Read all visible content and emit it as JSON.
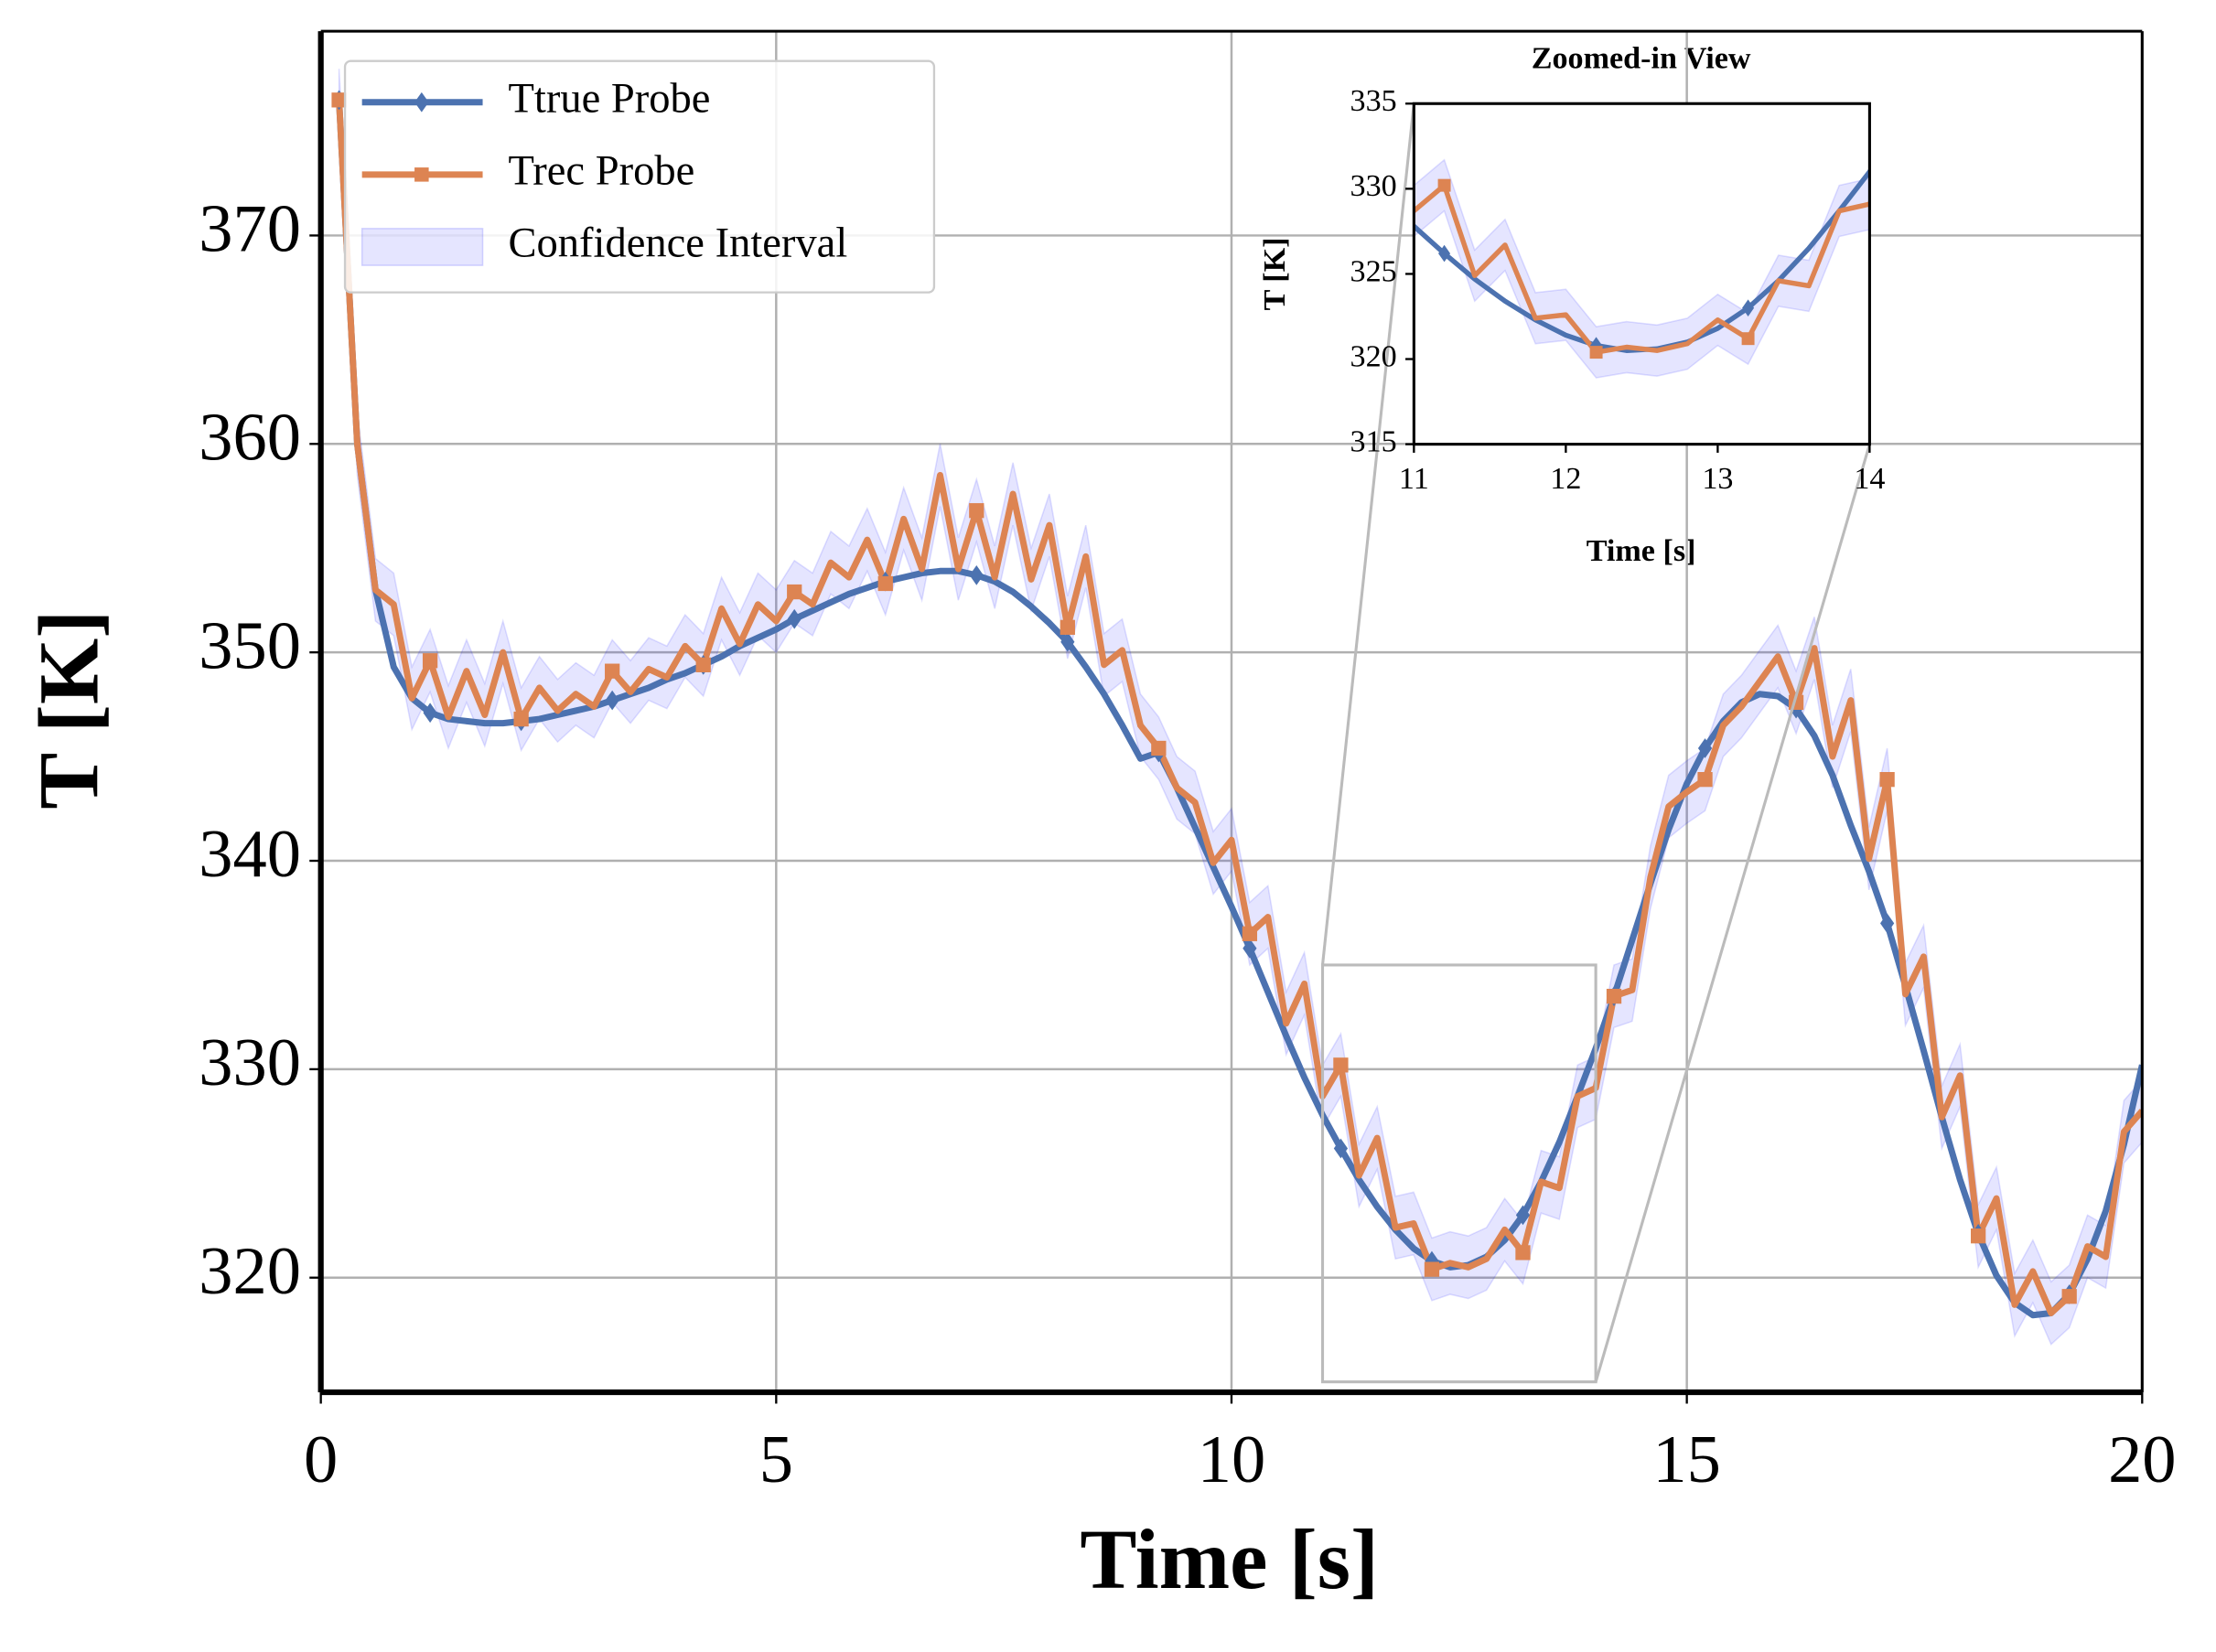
{
  "chart_data": {
    "type": "line",
    "xlabel": "Time [s]",
    "ylabel": "T [K]",
    "x": [
      0.2,
      0.4,
      0.6,
      0.8,
      1.0,
      1.2,
      1.4,
      1.6,
      1.8,
      2.0,
      2.2,
      2.4,
      2.6,
      2.8,
      3.0,
      3.2,
      3.4,
      3.6,
      3.8,
      4.0,
      4.2,
      4.4,
      4.6,
      4.8,
      5.0,
      5.2,
      5.4,
      5.6,
      5.8,
      6.0,
      6.2,
      6.4,
      6.6,
      6.8,
      7.0,
      7.2,
      7.4,
      7.6,
      7.8,
      8.0,
      8.2,
      8.4,
      8.6,
      8.8,
      9.0,
      9.2,
      9.4,
      9.6,
      9.8,
      10.0,
      10.2,
      10.4,
      10.6,
      10.8,
      11.0,
      11.2,
      11.4,
      11.6,
      11.8,
      12.0,
      12.2,
      12.4,
      12.6,
      12.8,
      13.0,
      13.2,
      13.4,
      13.6,
      13.8,
      14.0,
      14.2,
      14.4,
      14.6,
      14.8,
      15.0,
      15.2,
      15.4,
      15.6,
      15.8,
      16.0,
      16.2,
      16.4,
      16.6,
      16.8,
      17.0,
      17.2,
      17.4,
      17.6,
      17.8,
      18.0,
      18.2,
      18.4,
      18.6,
      18.8,
      19.0,
      19.2,
      19.4,
      19.6,
      19.8,
      20.0
    ],
    "series": [
      {
        "name": "Ttrue Probe",
        "color": "#4c72b0",
        "marker": "diamond",
        "values": [
          376.5,
          360,
          353,
          349.3,
          347.8,
          347.1,
          346.8,
          346.7,
          346.6,
          346.6,
          346.7,
          346.8,
          347.0,
          347.2,
          347.4,
          347.7,
          348.0,
          348.3,
          348.7,
          349.0,
          349.4,
          349.8,
          350.3,
          350.7,
          351.1,
          351.6,
          352.0,
          352.4,
          352.8,
          353.1,
          353.4,
          353.6,
          353.8,
          353.9,
          353.9,
          353.7,
          353.4,
          352.9,
          352.2,
          351.4,
          350.5,
          349.3,
          348.0,
          346.5,
          344.9,
          345.2,
          343.5,
          341.6,
          339.7,
          337.8,
          335.8,
          333.7,
          331.6,
          329.6,
          327.8,
          326.2,
          324.7,
          323.4,
          322.3,
          321.4,
          320.8,
          320.5,
          320.6,
          321.0,
          321.8,
          323.0,
          324.6,
          326.5,
          328.7,
          331.0,
          333.5,
          336.2,
          338.9,
          341.5,
          343.7,
          345.4,
          346.7,
          347.6,
          348.0,
          347.9,
          347.3,
          346.0,
          344.1,
          341.7,
          339.5,
          337.0,
          334.0,
          330.9,
          327.7,
          324.7,
          322.1,
          320.1,
          318.8,
          318.2,
          318.3,
          319.2,
          320.9,
          323.2,
          326.4,
          330.2
        ]
      },
      {
        "name": "Trec Probe",
        "color": "#dd8452",
        "marker": "square",
        "values": [
          376.5,
          360,
          353,
          352.3,
          347.8,
          349.6,
          346.9,
          349.1,
          347.0,
          350.0,
          346.8,
          348.3,
          347.2,
          348.0,
          347.4,
          349.1,
          348.1,
          349.2,
          348.8,
          350.3,
          349.4,
          352.1,
          350.4,
          352.3,
          351.5,
          352.9,
          352.3,
          354.3,
          353.6,
          355.4,
          353.3,
          356.4,
          354.0,
          358.5,
          354.0,
          356.8,
          353.6,
          357.6,
          353.5,
          356.1,
          351.2,
          354.6,
          349.4,
          350.1,
          346.5,
          345.4,
          343.5,
          342.8,
          339.9,
          341.0,
          336.5,
          337.3,
          332.2,
          334.1,
          328.7,
          330.2,
          324.9,
          326.7,
          322.4,
          322.6,
          320.4,
          320.7,
          320.5,
          320.9,
          322.3,
          321.2,
          324.6,
          324.3,
          328.7,
          329.1,
          333.5,
          333.8,
          339.2,
          342.6,
          343.3,
          343.9,
          346.5,
          347.4,
          348.6,
          349.8,
          347.6,
          350.2,
          345.0,
          347.7,
          340.1,
          343.9,
          333.6,
          335.4,
          327.7,
          329.7,
          322.0,
          323.8,
          318.7,
          320.3,
          318.3,
          319.1,
          321.5,
          321.0,
          327.0,
          328.0
        ]
      }
    ],
    "band": {
      "name": "Confidence Interval",
      "color": "#0000ff",
      "lower": [
        375.0,
        358.5,
        351.5,
        350.8,
        346.3,
        348.1,
        345.4,
        347.6,
        345.5,
        348.5,
        345.3,
        346.8,
        345.7,
        346.5,
        345.9,
        347.6,
        346.6,
        347.7,
        347.3,
        348.8,
        347.9,
        350.6,
        348.9,
        350.8,
        350.0,
        351.4,
        350.8,
        352.8,
        352.1,
        353.9,
        351.8,
        354.9,
        352.5,
        357.0,
        352.5,
        355.3,
        352.1,
        356.1,
        352.0,
        354.6,
        349.7,
        353.1,
        347.9,
        348.6,
        345.0,
        343.9,
        342.0,
        341.3,
        338.4,
        339.5,
        335.0,
        335.8,
        330.7,
        332.6,
        327.2,
        328.7,
        323.4,
        325.2,
        320.9,
        321.1,
        318.9,
        319.2,
        319.0,
        319.4,
        320.8,
        319.7,
        323.1,
        322.8,
        327.2,
        327.6,
        332.0,
        332.3,
        337.7,
        341.1,
        341.8,
        342.4,
        345.0,
        345.9,
        347.1,
        348.3,
        346.1,
        348.7,
        343.5,
        346.2,
        338.6,
        342.4,
        332.1,
        333.9,
        326.2,
        328.2,
        320.5,
        322.3,
        317.2,
        318.8,
        316.8,
        317.6,
        320.0,
        319.5,
        325.5,
        326.5
      ],
      "upper": [
        378.0,
        361.5,
        354.5,
        353.8,
        349.3,
        351.1,
        348.4,
        350.6,
        348.5,
        351.5,
        348.3,
        349.8,
        348.7,
        349.5,
        348.9,
        350.6,
        349.6,
        350.7,
        350.3,
        351.8,
        350.9,
        353.6,
        351.9,
        353.8,
        353.0,
        354.4,
        353.8,
        355.8,
        355.1,
        356.9,
        354.8,
        357.9,
        355.5,
        360.0,
        355.5,
        358.3,
        355.1,
        359.1,
        355.0,
        357.6,
        352.7,
        356.1,
        350.9,
        351.6,
        348.0,
        346.9,
        345.0,
        344.3,
        341.4,
        342.5,
        338.0,
        338.8,
        333.7,
        335.6,
        330.2,
        331.7,
        326.4,
        328.2,
        323.9,
        324.1,
        321.9,
        322.2,
        322.0,
        322.4,
        323.8,
        322.7,
        326.1,
        325.8,
        330.2,
        330.6,
        335.0,
        335.3,
        340.7,
        344.1,
        344.8,
        345.4,
        348.0,
        348.9,
        350.1,
        351.3,
        349.1,
        351.7,
        346.5,
        349.2,
        341.6,
        345.4,
        335.1,
        336.9,
        329.2,
        331.2,
        323.5,
        325.3,
        320.2,
        321.8,
        319.8,
        320.6,
        323.0,
        322.5,
        328.5,
        329.5
      ]
    },
    "markevery": 5,
    "xlim": [
      0,
      20
    ],
    "ylim": [
      314.5,
      379.8
    ],
    "xticks": [
      0,
      5,
      10,
      15,
      20
    ],
    "yticks": [
      320,
      330,
      340,
      350,
      360,
      370
    ],
    "grid": true,
    "legend": "upper left",
    "inset": {
      "title": "Zoomed-in View",
      "xlabel": "Time [s]",
      "ylabel": "T [K]",
      "xlim": [
        11,
        14
      ],
      "ylim": [
        315,
        335
      ],
      "xticks": [
        11,
        12,
        13,
        14
      ],
      "yticks": [
        315,
        320,
        325,
        330,
        335
      ]
    }
  }
}
